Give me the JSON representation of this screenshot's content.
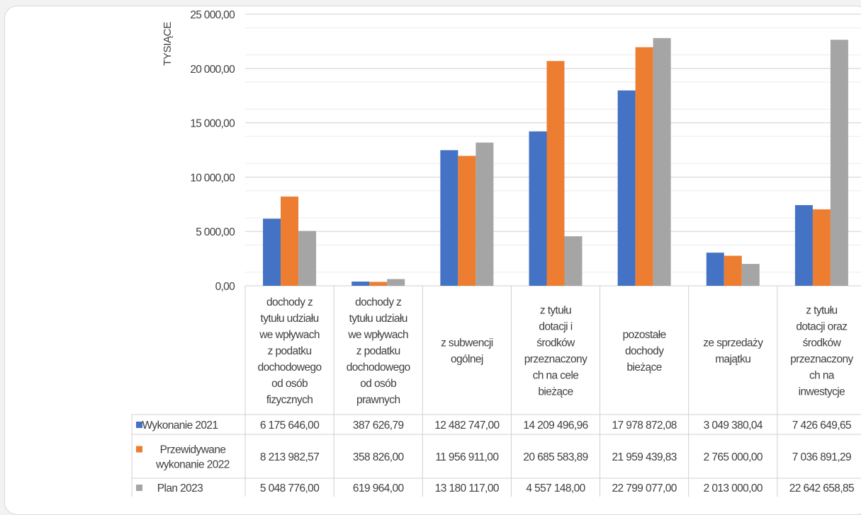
{
  "chart_data": {
    "type": "bar",
    "ylabel": "TYSIĄCE",
    "ylim": [
      0,
      25000
    ],
    "yticks": [
      "0,00",
      "5 000,00",
      "10 000,00",
      "15 000,00",
      "20 000,00",
      "25 000,00"
    ],
    "grid": true,
    "categories": [
      [
        "dochody z",
        "tytułu udziału",
        "we wpływach",
        "z podatku",
        "dochodowego",
        "od osób",
        "fizycznych"
      ],
      [
        "dochody z",
        "tytułu udziału",
        "we wpływach",
        "z podatku",
        "dochodowego",
        "od osób",
        "prawnych"
      ],
      [
        "z subwencji",
        "ogólnej"
      ],
      [
        "z tytułu",
        "dotacji i",
        "środków",
        "przeznaczony",
        "ch na cele",
        "bieżące"
      ],
      [
        "pozostałe",
        "dochody",
        "bieżące"
      ],
      [
        "ze sprzedaży",
        "majątku"
      ],
      [
        "z tytułu",
        "dotacji oraz",
        "środków",
        "przeznaczony",
        "ch na",
        "inwestycje"
      ]
    ],
    "series": [
      {
        "name": "Wykonanie 2021",
        "legend_lines": [
          "Wykonanie 2021"
        ],
        "color": "#4472c4",
        "values": [
          6175.646,
          387.62679,
          12482.747,
          14209.49696,
          17978.87208,
          3049.38004,
          7426.64965
        ],
        "labels": [
          "6 175 646,00",
          "387 626,79",
          "12 482 747,00",
          "14 209 496,96",
          "17 978 872,08",
          "3 049 380,04",
          "7 426 649,65"
        ]
      },
      {
        "name": "Przewidywane wykonanie 2022",
        "legend_lines": [
          "Przewidywane",
          "wykonanie 2022"
        ],
        "color": "#ed7d31",
        "values": [
          8213.98257,
          358.826,
          11956.911,
          20685.58389,
          21959.43983,
          2765.0,
          7036.89129
        ],
        "labels": [
          "8 213 982,57",
          "358 826,00",
          "11 956 911,00",
          "20 685 583,89",
          "21 959 439,83",
          "2 765 000,00",
          "7 036 891,29"
        ]
      },
      {
        "name": "Plan 2023",
        "legend_lines": [
          "Plan 2023"
        ],
        "color": "#a5a5a5",
        "values": [
          5048.776,
          619.964,
          13180.117,
          4557.148,
          22799.077,
          2013.0,
          22642.65885
        ],
        "labels": [
          "5 048 776,00",
          "619 964,00",
          "13 180 117,00",
          "4 557 148,00",
          "22 799 077,00",
          "2 013 000,00",
          "22 642 658,85"
        ]
      }
    ]
  }
}
